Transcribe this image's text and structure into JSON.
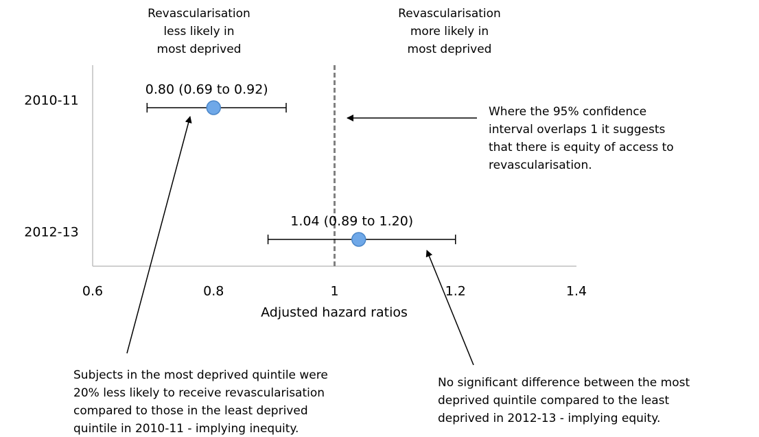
{
  "chart_data": {
    "type": "forest",
    "headers": [
      [
        "Revascularisation",
        "less likely in",
        "most deprived"
      ],
      [
        "Revascularisation",
        "more likely in",
        "most deprived"
      ]
    ],
    "categories": [
      "2010-11",
      "2012-13"
    ],
    "values": [
      0.8,
      1.04
    ],
    "lower": [
      0.69,
      0.89
    ],
    "upper": [
      0.92,
      1.2
    ],
    "value_labels": [
      "0.80 (0.69 to 0.92)",
      "1.04 (0.89 to 1.20)"
    ],
    "color": "#6fa8e8",
    "xlim": [
      0.6,
      1.4
    ],
    "xticks": [
      0.6,
      0.8,
      1,
      1.2,
      1.4
    ],
    "xlabel": "Adjusted hazard ratios",
    "reference_line": 1,
    "annotations": [
      [
        "Where the 95% confidence",
        "interval overlaps 1 it suggests",
        "that there is equity of access to",
        "revascularisation."
      ],
      [
        "Subjects in the most deprived quintile were",
        "20% less likely to receive revascularisation",
        "compared to those in the least deprived",
        "quintile in 2010-11 - implying inequity."
      ],
      [
        "No significant difference between the most",
        "deprived quintile compared to the least",
        "deprived in 2012-13 - implying equity."
      ]
    ]
  }
}
